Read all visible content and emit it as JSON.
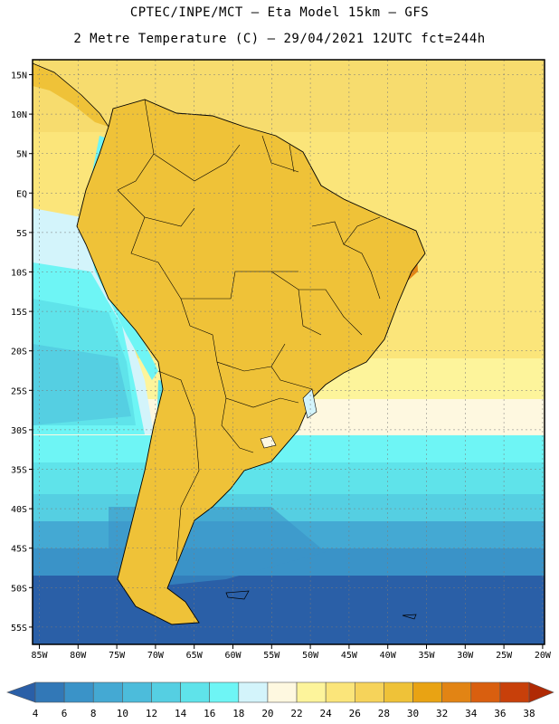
{
  "title_line1": "CPTEC/INPE/MCT –  Eta Model 15km – GFS",
  "title_line2": "2 Metre Temperature (C) – 29/04/2021 12UTC fct=244h",
  "lon_labels": [
    "85W",
    "80W",
    "75W",
    "70W",
    "65W",
    "60W",
    "55W",
    "50W",
    "45W",
    "40W",
    "35W",
    "30W",
    "25W",
    "20W"
  ],
  "lat_labels": [
    "15N",
    "10N",
    "5N",
    "EQ",
    "5S",
    "10S",
    "15S",
    "20S",
    "25S",
    "30S",
    "35S",
    "40S",
    "45S",
    "50S",
    "55S"
  ],
  "colorbar": {
    "labels": [
      "4",
      "6",
      "8",
      "10",
      "12",
      "14",
      "16",
      "18",
      "20",
      "22",
      "24",
      "26",
      "28",
      "30",
      "32",
      "34",
      "36",
      "38"
    ],
    "colors": [
      "#2a5fa7",
      "#3278b7",
      "#3a93c8",
      "#44a9d3",
      "#4cbcdb",
      "#55cfe2",
      "#5fe3ea",
      "#6ef5f5",
      "#d3f4fb",
      "#fef8e0",
      "#fdf49b",
      "#fbe57a",
      "#f6d35a",
      "#efc238",
      "#e9a313",
      "#e28414",
      "#d95f0f",
      "#c8400a",
      "#b02a04"
    ]
  },
  "chart_data": {
    "type": "map",
    "variable": "2 Metre Temperature",
    "units": "C",
    "model": "Eta Model 15km - GFS",
    "run": "29/04/2021 12UTC",
    "forecast_hour": 244,
    "lon_range": [
      -85,
      -20
    ],
    "lat_range": [
      -57.5,
      16
    ],
    "region": "South America"
  }
}
